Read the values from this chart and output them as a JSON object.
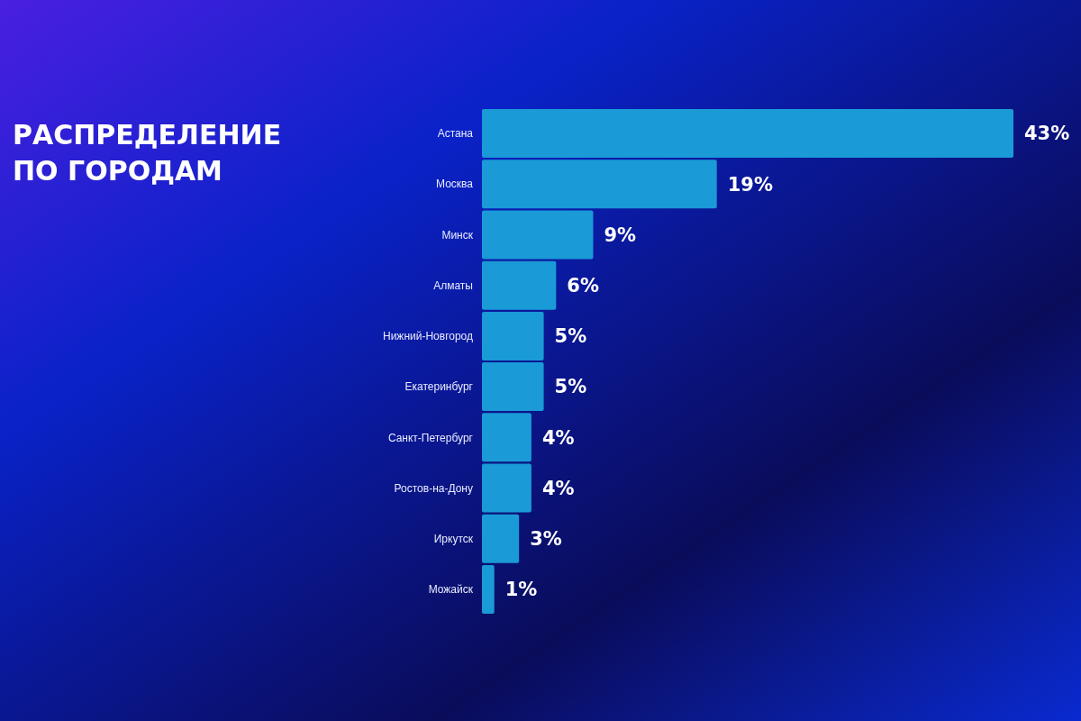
{
  "chart_data": {
    "type": "bar",
    "orientation": "horizontal",
    "title": "РАСПРЕДЕЛЕНИЕ ПО ГОРОДАМ",
    "categories": [
      "Астана",
      "Москва",
      "Минск",
      "Алматы",
      "Нижний-Новгород",
      "Екатеринбург",
      "Санкт-Петербург",
      "Ростов-на-Дону",
      "Иркутск",
      "Можайск"
    ],
    "values": [
      43,
      19,
      9,
      6,
      5,
      5,
      4,
      4,
      3,
      1
    ],
    "value_labels": [
      "43%",
      "19%",
      "9%",
      "6%",
      "5%",
      "5%",
      "4%",
      "4%",
      "3%",
      "1%"
    ],
    "color": "#1a9ad6",
    "tick_labels": "y"
  }
}
